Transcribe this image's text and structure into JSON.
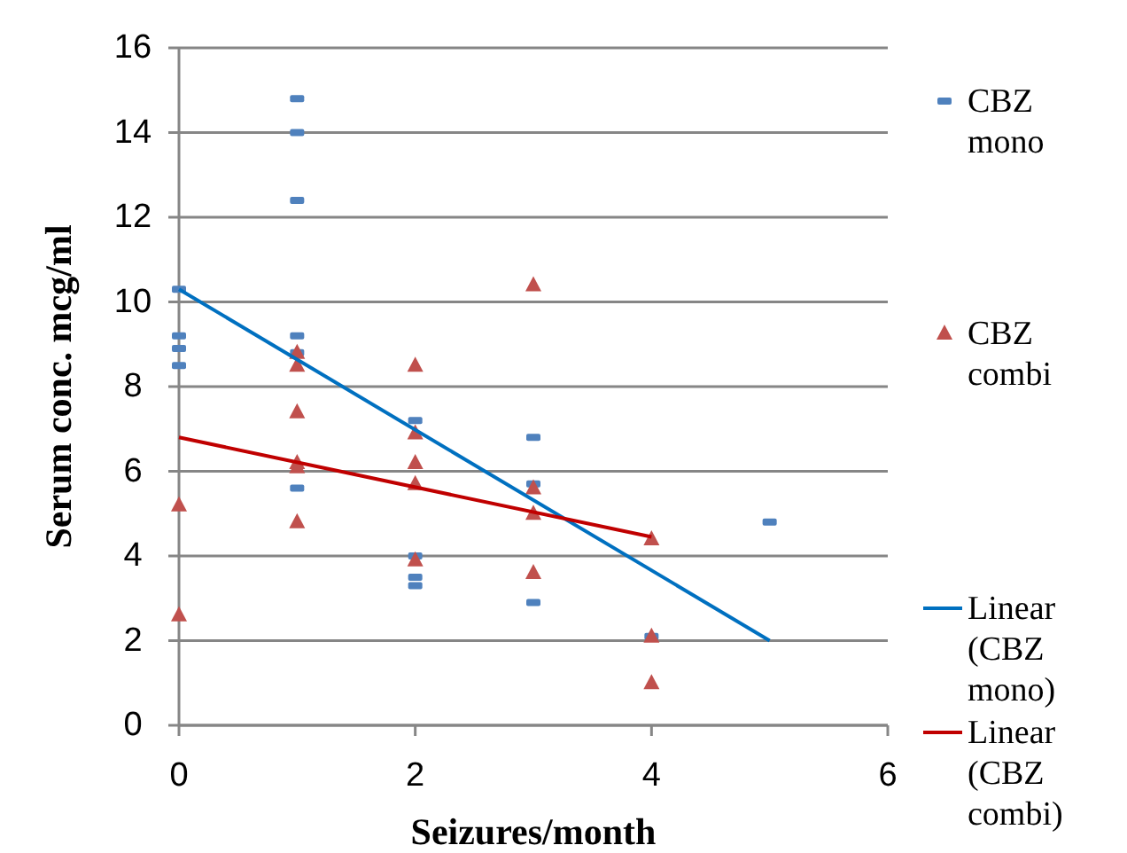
{
  "chart_data": {
    "type": "scatter",
    "xlabel": "Seizures/month",
    "ylabel": "Serum conc. mcg/ml",
    "xlim": [
      0,
      6
    ],
    "xticks": [
      0,
      2,
      4,
      6
    ],
    "ylim": [
      0,
      16
    ],
    "yticks": [
      0,
      2,
      4,
      6,
      8,
      10,
      12,
      14,
      16
    ],
    "grid": "y",
    "legend": "right",
    "series": [
      {
        "name": "CBZ mono",
        "marker": "square",
        "color": "#4f81bd",
        "x": [
          0,
          0,
          0,
          0,
          1,
          1,
          1,
          1,
          1,
          1,
          2,
          2,
          2,
          2,
          3,
          3,
          3,
          4,
          5
        ],
        "values": [
          10.3,
          9.2,
          8.9,
          8.5,
          14.8,
          14.0,
          12.4,
          9.2,
          8.8,
          5.6,
          7.2,
          4.0,
          3.5,
          3.3,
          6.8,
          5.7,
          2.9,
          2.1,
          4.8
        ]
      },
      {
        "name": "CBZ combi",
        "marker": "triangle",
        "color": "#c0504d",
        "x": [
          0,
          0,
          1,
          1,
          1,
          1,
          1,
          1,
          2,
          2,
          2,
          2,
          2,
          3,
          3,
          3,
          3,
          4,
          4,
          4
        ],
        "values": [
          5.2,
          2.6,
          8.8,
          8.5,
          7.4,
          6.2,
          6.1,
          4.8,
          8.5,
          6.9,
          6.2,
          5.7,
          3.9,
          10.4,
          5.6,
          5.0,
          3.6,
          4.4,
          2.1,
          1.0
        ]
      },
      {
        "name": "Linear (CBZ mono)",
        "type": "line",
        "marker": "none",
        "color": "#0070c0",
        "x": [
          0,
          5
        ],
        "values": [
          10.3,
          2.0
        ]
      },
      {
        "name": "Linear (CBZ combi)",
        "type": "line",
        "marker": "none",
        "color": "#c00000",
        "x": [
          0,
          4
        ],
        "values": [
          6.8,
          4.45
        ]
      }
    ]
  }
}
